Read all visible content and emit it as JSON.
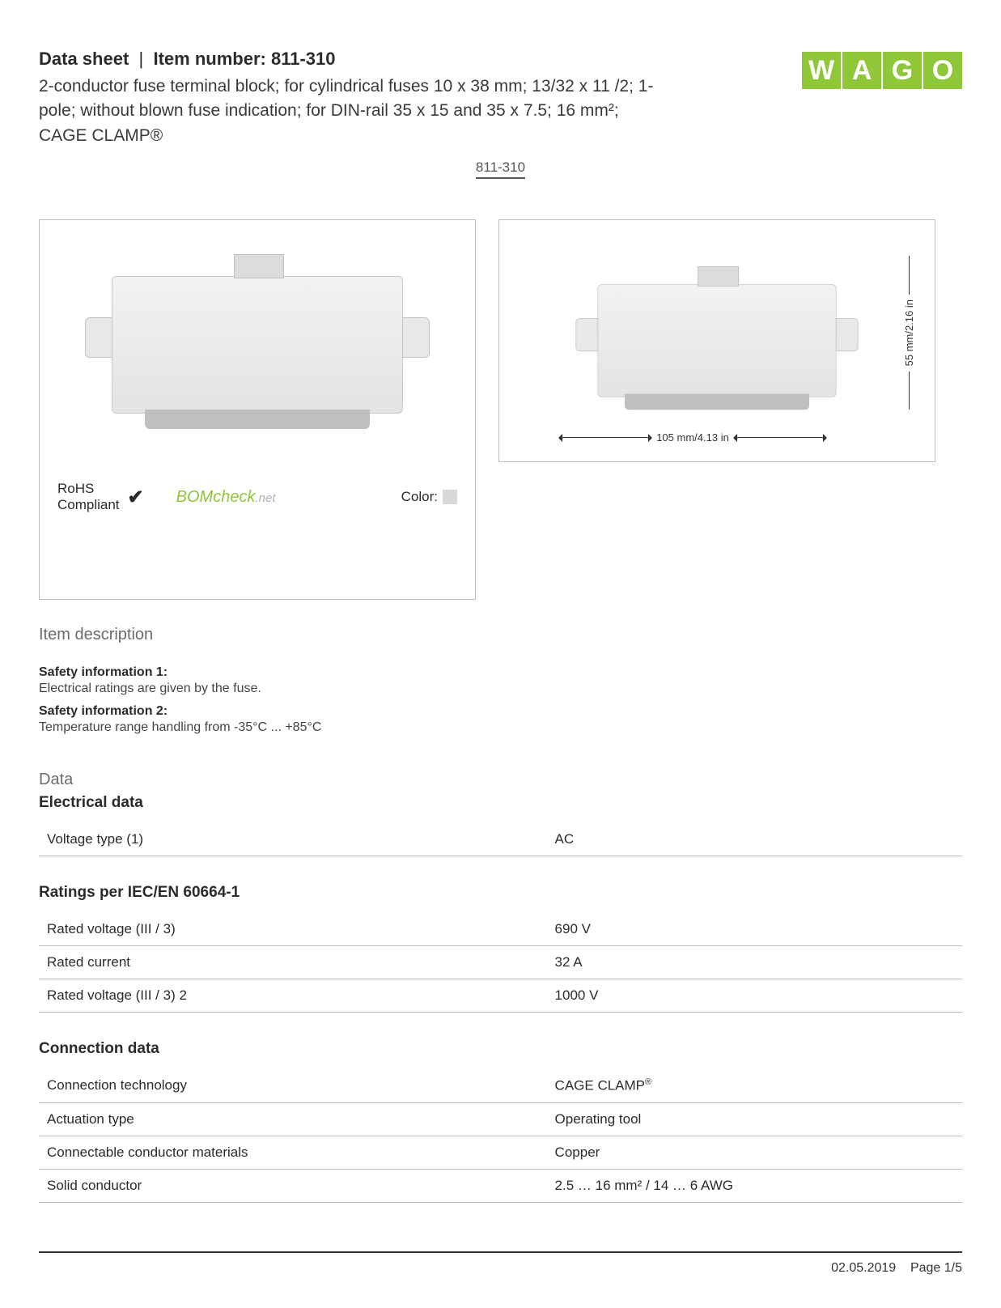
{
  "header": {
    "title_prefix": "Data sheet",
    "title_sep": "|",
    "title_item_label": "Item number:",
    "item_number": "811-310",
    "subtitle": "2-conductor fuse terminal block; for cylindrical fuses 10 x 38 mm; 13/32 x 11 /2; 1-pole; without blown fuse indication; for DIN-rail 35 x 15 and 35 x 7.5; 16 mm²; CAGE CLAMP®",
    "link_text": "811-310"
  },
  "logo": {
    "letters": [
      "W",
      "A",
      "G",
      "O"
    ],
    "color": "#8fc738"
  },
  "dimensions": {
    "width_label": "105 mm/4.13 in",
    "height_label": "55 mm/2.16 in"
  },
  "compliance": {
    "rohs_label": "RoHS",
    "rohs_sub": "Compliant",
    "checkmark": "✔",
    "bomcheck": "BOMcheck",
    "bomcheck_suffix": ".net",
    "color_label": "Color:",
    "color_swatch": "#d8d8d8"
  },
  "item_description": {
    "heading": "Item description",
    "safety1_label": "Safety information 1:",
    "safety1_text": "Electrical ratings are given by the fuse.",
    "safety2_label": "Safety information 2:",
    "safety2_text": "Temperature range handling from -35°C ... +85°C"
  },
  "data": {
    "heading": "Data",
    "sections": [
      {
        "title": "Electrical data",
        "rows": [
          {
            "label": "Voltage type (1)",
            "value": "AC"
          }
        ]
      },
      {
        "title": "Ratings per IEC/EN 60664-1",
        "rows": [
          {
            "label": "Rated voltage (III / 3)",
            "value": "690 V"
          },
          {
            "label": "Rated current",
            "value": "32 A"
          },
          {
            "label": "Rated voltage (III / 3) 2",
            "value": "1000 V"
          }
        ]
      },
      {
        "title": "Connection data",
        "rows": [
          {
            "label": "Connection technology",
            "value": "CAGE CLAMP®"
          },
          {
            "label": "Actuation type",
            "value": "Operating tool"
          },
          {
            "label": "Connectable conductor materials",
            "value": "Copper"
          },
          {
            "label": "Solid conductor",
            "value": "2.5 … 16 mm² / 14 … 6 AWG"
          }
        ]
      }
    ]
  },
  "footer": {
    "date": "02.05.2019",
    "page": "Page 1/5"
  },
  "colors": {
    "text": "#2b2b2b",
    "muted": "#6b6b6b",
    "border": "#bdbdbd",
    "row_border": "#bcbcbc",
    "brand": "#8fc738"
  }
}
